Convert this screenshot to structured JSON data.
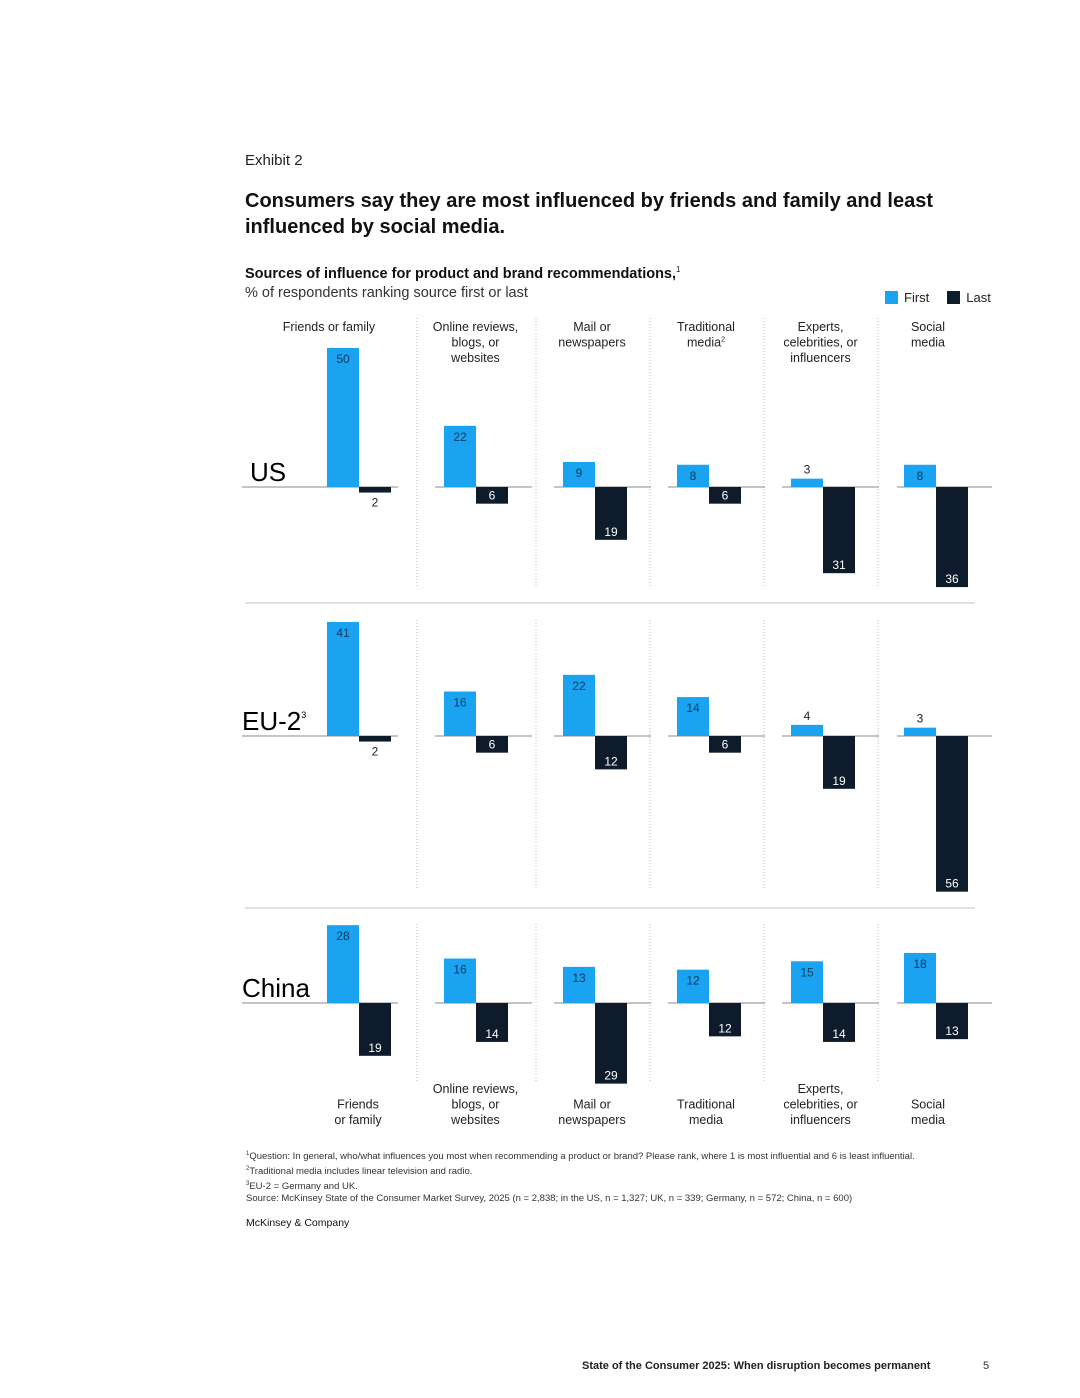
{
  "header": {
    "exhibit": "Exhibit 2",
    "headline": "Consumers say they are most influenced by friends and family and least influenced by social media.",
    "subtitle": "Sources of influence for product and brand recommendations,",
    "subtitle_sup": "1",
    "subtitle2": "% of respondents ranking source first or last"
  },
  "legend": {
    "first": "First",
    "last": "Last"
  },
  "colors": {
    "first": "#1aa3f0",
    "last": "#0d1b2a"
  },
  "chart_data": {
    "type": "bar",
    "categories": [
      "Friends or family",
      "Online reviews, blogs, or websites",
      "Mail or newspapers",
      "Traditional media",
      "Experts, celebrities, or influencers",
      "Social media"
    ],
    "top_labels": [
      [
        "Friends or family"
      ],
      [
        "Online reviews,",
        "blogs, or",
        "websites"
      ],
      [
        "Mail or",
        "newspapers"
      ],
      [
        "Traditional",
        "media"
      ],
      [
        "Experts,",
        "celebrities, or",
        "influencers"
      ],
      [
        "Social",
        "media"
      ]
    ],
    "top_label_sups": [
      "",
      "",
      "",
      "2",
      "",
      ""
    ],
    "bottom_labels": [
      [
        "Friends",
        "or family"
      ],
      [
        "Online reviews,",
        "blogs, or",
        "websites"
      ],
      [
        "Mail or",
        "newspapers"
      ],
      [
        "Traditional",
        "media"
      ],
      [
        "Experts,",
        "celebrities, or",
        "influencers"
      ],
      [
        "Social",
        "media"
      ]
    ],
    "panels": [
      {
        "name": "US",
        "name_sup": "",
        "first": [
          50,
          22,
          9,
          8,
          3,
          8
        ],
        "last": [
          2,
          6,
          19,
          6,
          31,
          36
        ]
      },
      {
        "name": "EU-2",
        "name_sup": "3",
        "first": [
          41,
          16,
          22,
          14,
          4,
          3
        ],
        "last": [
          2,
          6,
          12,
          6,
          19,
          56
        ]
      },
      {
        "name": "China",
        "name_sup": "",
        "first": [
          28,
          16,
          13,
          12,
          15,
          18
        ],
        "last": [
          19,
          14,
          29,
          12,
          14,
          13
        ]
      }
    ]
  },
  "footnotes": [
    {
      "sup": "1",
      "text": "Question: In general, who/what influences you most when recommending a product or brand? Please rank, where 1 is most influential and 6 is least influential."
    },
    {
      "sup": "2",
      "text": "Traditional media includes linear television and radio."
    },
    {
      "sup": "3",
      "text": "EU-2 = Germany and UK."
    },
    {
      "sup": "",
      "text": "Source: McKinsey State of the Consumer Market Survey, 2025 (n = 2,838; in the US, n = 1,327; UK, n = 339; Germany, n = 572; China, n = 600)"
    }
  ],
  "brand": "McKinsey & Company",
  "runner": "State of the Consumer 2025: When disruption becomes permanent",
  "page_number": "5"
}
